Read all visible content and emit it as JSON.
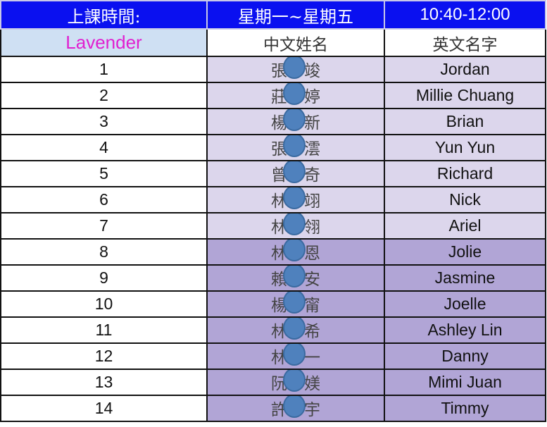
{
  "header": {
    "label": "上課時間:",
    "days": "星期一~星期五",
    "time": "10:40-12:00"
  },
  "subheader": {
    "class_name": "Lavender",
    "col_chinese": "中文姓名",
    "col_english": "英文名字"
  },
  "colors": {
    "header_bg": "#0a10f0",
    "class_name": "#e020d0",
    "row_light": "#dcd6ec",
    "row_dark": "#b1a5d6",
    "redaction_dot": "#4f81bd"
  },
  "rows": [
    {
      "no": "1",
      "cn_first": "張",
      "cn_last": "竣",
      "en": "Jordan"
    },
    {
      "no": "2",
      "cn_first": "莊",
      "cn_last": "婷",
      "en": "Millie Chuang"
    },
    {
      "no": "3",
      "cn_first": "楊",
      "cn_last": "新",
      "en": "Brian"
    },
    {
      "no": "4",
      "cn_first": "張",
      "cn_last": "澐",
      "en": "Yun Yun"
    },
    {
      "no": "5",
      "cn_first": "曾",
      "cn_last": "奇",
      "en": "Richard"
    },
    {
      "no": "6",
      "cn_first": "林",
      "cn_last": "翊",
      "en": "Nick"
    },
    {
      "no": "7",
      "cn_first": "林",
      "cn_last": "翎",
      "en": "Ariel"
    },
    {
      "no": "8",
      "cn_first": "林",
      "cn_last": "恩",
      "en": "Jolie"
    },
    {
      "no": "9",
      "cn_first": "賴",
      "cn_last": "安",
      "en": "Jasmine"
    },
    {
      "no": "10",
      "cn_first": "楊",
      "cn_last": "甯",
      "en": "Joelle"
    },
    {
      "no": "11",
      "cn_first": "林",
      "cn_last": "希",
      "en": "Ashley Lin"
    },
    {
      "no": "12",
      "cn_first": "林",
      "cn_last": "一",
      "en": "Danny"
    },
    {
      "no": "13",
      "cn_first": "阮",
      "cn_last": "媄",
      "en": "Mimi Juan"
    },
    {
      "no": "14",
      "cn_first": "許",
      "cn_last": "宇",
      "en": "Timmy"
    }
  ]
}
